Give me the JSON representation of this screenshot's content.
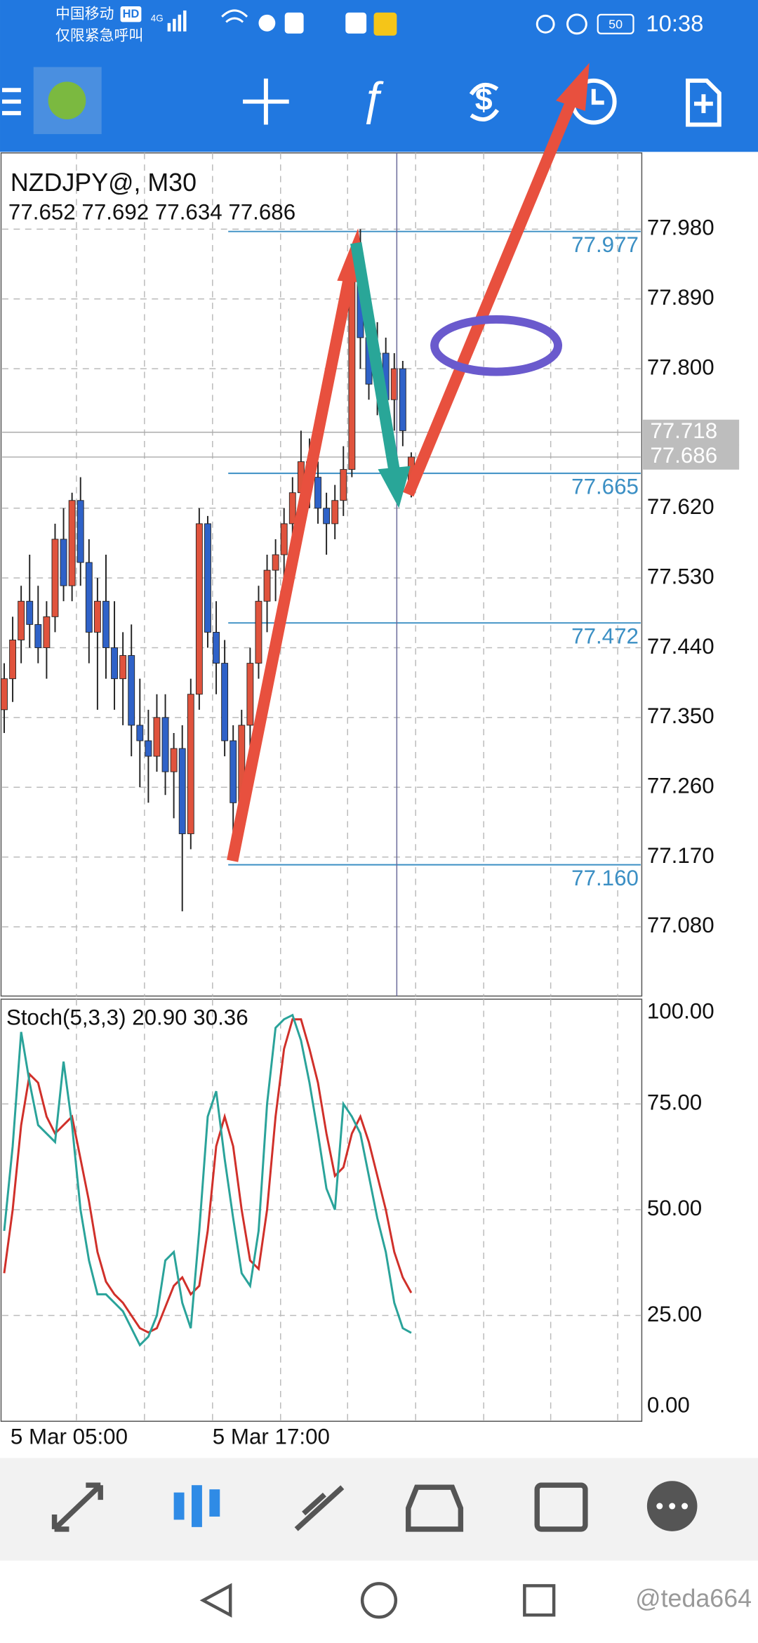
{
  "status_bar": {
    "carrier": "中国移动",
    "hd": "HD",
    "network": "4G",
    "emergency": "仅限紧急呼叫",
    "battery": "50",
    "time": "10:38"
  },
  "chart": {
    "symbol": "NZDJPY@, M30",
    "ohlc": "77.652 77.692 77.634 77.686",
    "colors": {
      "bull": "#e0533d",
      "bear": "#2f62c8"
    },
    "ylim": [
      76.992,
      78.077
    ],
    "yticks": [
      {
        "value": 77.08,
        "label": "77.080"
      },
      {
        "value": 77.17,
        "label": "77.170"
      },
      {
        "value": 77.26,
        "label": "77.260"
      },
      {
        "value": 77.35,
        "label": "77.350"
      },
      {
        "value": 77.44,
        "label": "77.440"
      },
      {
        "value": 77.53,
        "label": "77.530"
      },
      {
        "value": 77.62,
        "label": "77.620"
      },
      {
        "value": 77.8,
        "label": "77.800"
      },
      {
        "value": 77.89,
        "label": "77.890"
      },
      {
        "value": 77.98,
        "label": "77.980"
      }
    ],
    "candles": [
      [
        77.36,
        77.42,
        77.33,
        77.4
      ],
      [
        77.4,
        77.48,
        77.37,
        77.45
      ],
      [
        77.45,
        77.52,
        77.42,
        77.5
      ],
      [
        77.5,
        77.56,
        77.44,
        77.47
      ],
      [
        77.47,
        77.52,
        77.42,
        77.44
      ],
      [
        77.44,
        77.5,
        77.4,
        77.48
      ],
      [
        77.48,
        77.6,
        77.46,
        77.58
      ],
      [
        77.58,
        77.62,
        77.5,
        77.52
      ],
      [
        77.52,
        77.64,
        77.5,
        77.63
      ],
      [
        77.63,
        77.66,
        77.52,
        77.55
      ],
      [
        77.55,
        77.58,
        77.42,
        77.46
      ],
      [
        77.46,
        77.53,
        77.36,
        77.5
      ],
      [
        77.5,
        77.56,
        77.4,
        77.44
      ],
      [
        77.44,
        77.5,
        77.36,
        77.4
      ],
      [
        77.4,
        77.46,
        77.34,
        77.43
      ],
      [
        77.43,
        77.47,
        77.3,
        77.34
      ],
      [
        77.34,
        77.4,
        77.26,
        77.32
      ],
      [
        77.32,
        77.36,
        77.24,
        77.3
      ],
      [
        77.3,
        77.38,
        77.28,
        77.35
      ],
      [
        77.35,
        77.38,
        77.25,
        77.28
      ],
      [
        77.28,
        77.33,
        77.22,
        77.31
      ],
      [
        77.31,
        77.34,
        77.1,
        77.2
      ],
      [
        77.2,
        77.4,
        77.18,
        77.38
      ],
      [
        77.38,
        77.62,
        77.36,
        77.6
      ],
      [
        77.6,
        77.61,
        77.44,
        77.46
      ],
      [
        77.46,
        77.5,
        77.38,
        77.42
      ],
      [
        77.42,
        77.45,
        77.3,
        77.32
      ],
      [
        77.32,
        77.34,
        77.17,
        77.24
      ],
      [
        77.24,
        77.36,
        77.22,
        77.34
      ],
      [
        77.34,
        77.44,
        77.3,
        77.42
      ],
      [
        77.42,
        77.52,
        77.4,
        77.5
      ],
      [
        77.5,
        77.56,
        77.46,
        77.54
      ],
      [
        77.54,
        77.58,
        77.5,
        77.56
      ],
      [
        77.56,
        77.62,
        77.52,
        77.6
      ],
      [
        77.6,
        77.66,
        77.56,
        77.64
      ],
      [
        77.64,
        77.72,
        77.6,
        77.68
      ],
      [
        77.68,
        77.71,
        77.62,
        77.66
      ],
      [
        77.66,
        77.68,
        77.6,
        77.62
      ],
      [
        77.62,
        77.64,
        77.56,
        77.6
      ],
      [
        77.6,
        77.65,
        77.58,
        77.63
      ],
      [
        77.63,
        77.7,
        77.61,
        77.67
      ],
      [
        77.67,
        77.95,
        77.66,
        77.92
      ],
      [
        77.92,
        77.98,
        77.8,
        77.84
      ],
      [
        77.84,
        77.88,
        77.76,
        77.78
      ],
      [
        77.78,
        77.86,
        77.74,
        77.82
      ],
      [
        77.82,
        77.84,
        77.74,
        77.76
      ],
      [
        77.76,
        77.82,
        77.72,
        77.8
      ],
      [
        77.8,
        77.81,
        77.7,
        77.72
      ],
      [
        77.652,
        77.692,
        77.634,
        77.686
      ]
    ],
    "levels": [
      77.977,
      77.665,
      77.472,
      {
        "value": 77.16,
        "label": "77.160"
      }
    ],
    "ask": 77.718,
    "bid": 77.686,
    "time_labels": [
      "5 Mar 05:00",
      "5 Mar 17:00"
    ]
  },
  "stochastic": {
    "label": "Stoch(5,3,3) 20.90 30.36",
    "ylim": [
      0,
      100
    ],
    "yticks": [
      {
        "value": 0,
        "label": "0.00"
      },
      {
        "value": 25,
        "label": "25.00"
      },
      {
        "value": 50,
        "label": "50.00"
      },
      {
        "value": 75,
        "label": "75.00"
      },
      {
        "value": 100,
        "label": "100.00"
      }
    ],
    "main": {
      "color": "#2aa39a",
      "values": [
        45,
        65,
        92,
        80,
        70,
        68,
        66,
        85,
        70,
        50,
        38,
        30,
        30,
        28,
        26,
        22,
        18,
        20,
        25,
        38,
        40,
        28,
        22,
        45,
        72,
        78,
        62,
        48,
        35,
        32,
        45,
        75,
        93,
        95,
        96,
        90,
        80,
        68,
        55,
        50,
        75,
        72,
        68,
        58,
        48,
        40,
        28,
        22,
        20.9
      ]
    },
    "signal": {
      "color": "#d0302a",
      "values": [
        35,
        50,
        70,
        82,
        80,
        72,
        68,
        70,
        72,
        62,
        52,
        40,
        33,
        30,
        28,
        25,
        22,
        21,
        22,
        27,
        32,
        34,
        30,
        32,
        45,
        65,
        72,
        65,
        50,
        38,
        36,
        50,
        72,
        88,
        95,
        95,
        88,
        80,
        68,
        58,
        60,
        68,
        72,
        66,
        58,
        50,
        40,
        34,
        30.36
      ]
    }
  },
  "watermark": "@teda664"
}
